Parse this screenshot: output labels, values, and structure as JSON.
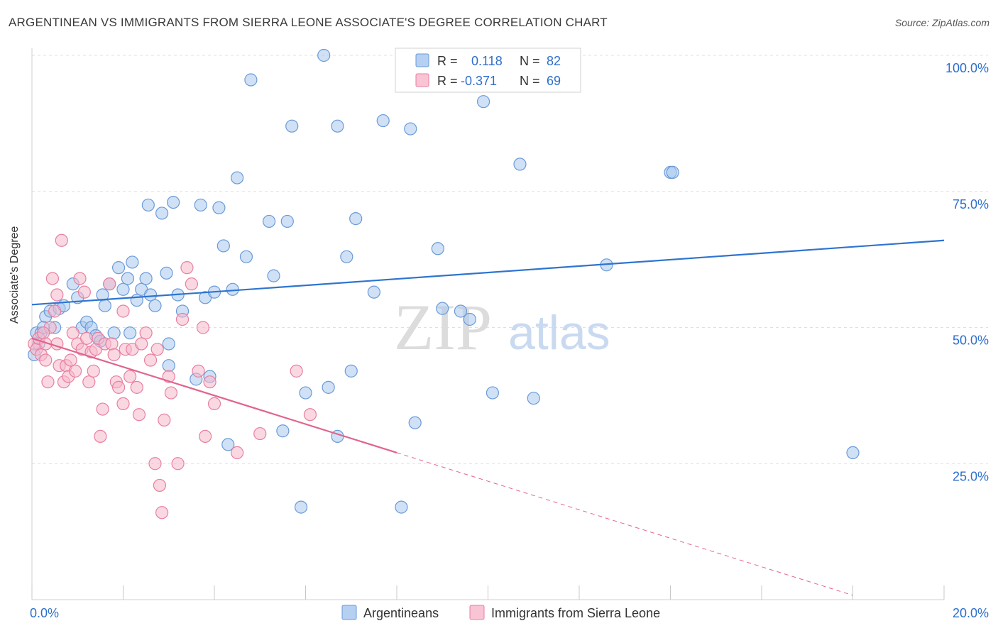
{
  "header": {
    "title": "ARGENTINEAN VS IMMIGRANTS FROM SIERRA LEONE ASSOCIATE'S DEGREE CORRELATION CHART",
    "source": "Source: ZipAtlas.com"
  },
  "watermark": {
    "zip": "ZIP",
    "atlas": "atlas"
  },
  "legend_top": {
    "rows": [
      {
        "r_label": "R =",
        "r_value": "0.118",
        "n_label": "N =",
        "n_value": "82"
      },
      {
        "r_label": "R =",
        "r_value": "-0.371",
        "n_label": "N =",
        "n_value": "69"
      }
    ]
  },
  "legend_bottom": {
    "items": [
      "Argentineans",
      "Immigrants from Sierra Leone"
    ]
  },
  "colors": {
    "blue_fill": "#a9c8ee",
    "blue_stroke": "#6a9ad8",
    "blue_line": "#2e74d0",
    "pink_fill": "#f6b8cb",
    "pink_stroke": "#e87fa0",
    "pink_line": "#e0648e",
    "value_text": "#2e6fcc",
    "grid": "#e0e0e0"
  },
  "chart_data": {
    "type": "scatter",
    "title": "ARGENTINEAN VS IMMIGRANTS FROM SIERRA LEONE ASSOCIATE'S DEGREE CORRELATION CHART",
    "xlabel": "",
    "ylabel": "Associate's Degree",
    "xlim": [
      0,
      20
    ],
    "ylim": [
      0,
      100
    ],
    "x_tick_labels": [
      "0.0%",
      "20.0%"
    ],
    "y_tick_labels": [
      "100.0%",
      "75.0%",
      "50.0%",
      "25.0%"
    ],
    "y_ticks": [
      100,
      75,
      50,
      25
    ],
    "grid": true,
    "legend_placement": "top-center",
    "series": [
      {
        "name": "Argentineans",
        "r": 0.118,
        "n": 82,
        "trend": {
          "x0": 0,
          "y0": 54.2,
          "x1": 20,
          "y1": 66.0,
          "dashed_after": null
        },
        "points": [
          [
            0.05,
            45
          ],
          [
            0.1,
            49
          ],
          [
            0.2,
            49
          ],
          [
            0.3,
            52
          ],
          [
            0.4,
            53
          ],
          [
            0.5,
            50
          ],
          [
            0.6,
            53.5
          ],
          [
            0.7,
            54
          ],
          [
            0.9,
            58
          ],
          [
            1.0,
            55.5
          ],
          [
            1.1,
            50
          ],
          [
            1.2,
            51
          ],
          [
            1.3,
            50
          ],
          [
            1.4,
            48.5
          ],
          [
            1.5,
            47.5
          ],
          [
            1.55,
            56
          ],
          [
            1.6,
            54
          ],
          [
            1.7,
            58
          ],
          [
            1.8,
            49
          ],
          [
            1.9,
            61
          ],
          [
            2.0,
            57
          ],
          [
            2.1,
            59
          ],
          [
            2.15,
            49
          ],
          [
            2.2,
            62
          ],
          [
            2.3,
            55
          ],
          [
            2.4,
            57
          ],
          [
            2.5,
            59
          ],
          [
            2.55,
            72.5
          ],
          [
            2.6,
            56
          ],
          [
            2.7,
            54
          ],
          [
            2.85,
            71
          ],
          [
            2.95,
            60
          ],
          [
            3.0,
            47
          ],
          [
            3.1,
            73
          ],
          [
            3.2,
            56
          ],
          [
            3.3,
            53
          ],
          [
            3.0,
            43
          ],
          [
            3.7,
            72.5
          ],
          [
            3.8,
            55.5
          ],
          [
            4.0,
            56.5
          ],
          [
            4.1,
            72
          ],
          [
            4.2,
            65
          ],
          [
            4.4,
            57
          ],
          [
            4.5,
            77.5
          ],
          [
            4.7,
            63
          ],
          [
            4.8,
            95.5
          ],
          [
            5.2,
            69.5
          ],
          [
            5.3,
            59.5
          ],
          [
            5.5,
            31
          ],
          [
            5.6,
            69.5
          ],
          [
            5.7,
            87
          ],
          [
            5.9,
            17
          ],
          [
            6.0,
            38
          ],
          [
            6.5,
            39
          ],
          [
            6.7,
            87
          ],
          [
            6.9,
            63
          ],
          [
            7.0,
            42
          ],
          [
            7.1,
            70
          ],
          [
            7.5,
            56.5
          ],
          [
            7.7,
            88
          ],
          [
            8.1,
            17
          ],
          [
            8.3,
            86.5
          ],
          [
            8.4,
            32.5
          ],
          [
            8.9,
            64.5
          ],
          [
            9.0,
            53.5
          ],
          [
            9.4,
            53
          ],
          [
            9.6,
            51.5
          ],
          [
            9.9,
            91.5
          ],
          [
            10.1,
            38
          ],
          [
            10.7,
            80
          ],
          [
            11.0,
            37
          ],
          [
            12.6,
            61.5
          ],
          [
            14.0,
            78.5
          ],
          [
            14.05,
            78.5
          ],
          [
            18.0,
            27
          ],
          [
            3.9,
            41
          ],
          [
            3.6,
            40.5
          ],
          [
            4.3,
            28.5
          ],
          [
            6.7,
            30
          ],
          [
            6.4,
            100
          ],
          [
            0.15,
            47
          ],
          [
            0.25,
            50
          ]
        ]
      },
      {
        "name": "Immigrants from Sierra Leone",
        "r": -0.371,
        "n": 69,
        "trend": {
          "x0": 0,
          "y0": 48.0,
          "x1": 8.0,
          "y1": 27.0,
          "dashed_to_x": 18.0,
          "dashed_to_y": 0.8
        },
        "points": [
          [
            0.05,
            47
          ],
          [
            0.1,
            46
          ],
          [
            0.15,
            48
          ],
          [
            0.2,
            45
          ],
          [
            0.3,
            44
          ],
          [
            0.35,
            40
          ],
          [
            0.4,
            50
          ],
          [
            0.45,
            59
          ],
          [
            0.5,
            53
          ],
          [
            0.55,
            47
          ],
          [
            0.6,
            43
          ],
          [
            0.65,
            66
          ],
          [
            0.7,
            40
          ],
          [
            0.75,
            43
          ],
          [
            0.8,
            41
          ],
          [
            0.85,
            44
          ],
          [
            0.9,
            49
          ],
          [
            0.95,
            42
          ],
          [
            1.0,
            47
          ],
          [
            1.05,
            59
          ],
          [
            1.1,
            46
          ],
          [
            1.15,
            56.5
          ],
          [
            1.2,
            48
          ],
          [
            1.25,
            40
          ],
          [
            1.3,
            45.5
          ],
          [
            1.35,
            42
          ],
          [
            1.4,
            46
          ],
          [
            1.45,
            48
          ],
          [
            1.5,
            30
          ],
          [
            1.6,
            47
          ],
          [
            1.7,
            58
          ],
          [
            1.75,
            47
          ],
          [
            1.8,
            45
          ],
          [
            1.85,
            40
          ],
          [
            1.9,
            39
          ],
          [
            2.0,
            36
          ],
          [
            2.05,
            46
          ],
          [
            2.15,
            41
          ],
          [
            2.2,
            46
          ],
          [
            2.3,
            39
          ],
          [
            2.35,
            34
          ],
          [
            2.4,
            47
          ],
          [
            2.5,
            49
          ],
          [
            2.6,
            44
          ],
          [
            2.7,
            25
          ],
          [
            2.75,
            46
          ],
          [
            2.8,
            21
          ],
          [
            2.85,
            16
          ],
          [
            2.9,
            33
          ],
          [
            3.0,
            41
          ],
          [
            3.05,
            38
          ],
          [
            3.2,
            25
          ],
          [
            3.3,
            51.5
          ],
          [
            3.4,
            61
          ],
          [
            3.5,
            58
          ],
          [
            3.65,
            42
          ],
          [
            3.75,
            50
          ],
          [
            3.8,
            30
          ],
          [
            3.9,
            40
          ],
          [
            4.0,
            36
          ],
          [
            4.5,
            27
          ],
          [
            5.0,
            30.5
          ],
          [
            5.8,
            42
          ],
          [
            6.1,
            34
          ],
          [
            0.25,
            49
          ],
          [
            0.3,
            47
          ],
          [
            0.55,
            56
          ],
          [
            1.55,
            35
          ],
          [
            2.0,
            53
          ]
        ]
      }
    ]
  }
}
